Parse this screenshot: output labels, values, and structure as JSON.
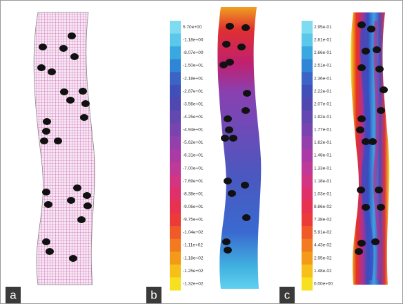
{
  "panels": [
    {
      "label": "a"
    },
    {
      "label": "b",
      "colorbar": [
        "5.70e+00",
        "-1.18e+00",
        "-8.07e+00",
        "-1.50e+01",
        "-2.18e+01",
        "-2.87e+01",
        "-3.56e+01",
        "-4.25e+01",
        "-4.94e+01",
        "-5.62e+01",
        "-6.31e+01",
        "-7.00e+01",
        "-7.69e+01",
        "-8.38e+01",
        "-9.06e+01",
        "-9.75e+01",
        "-1.04e+02",
        "-1.11e+02",
        "-1.18e+02",
        "-1.25e+02",
        "-1.32e+02"
      ]
    },
    {
      "label": "c",
      "colorbar": [
        "2.95e-01",
        "2.81e-01",
        "2.66e-01",
        "2.51e-01",
        "2.36e-01",
        "2.22e-01",
        "2.07e-01",
        "1.92e-01",
        "1.77e-01",
        "1.62e-01",
        "1.48e-01",
        "1.33e-01",
        "1.18e-01",
        "1.03e-01",
        "8.86e-02",
        "7.38e-02",
        "5.91e-02",
        "4.43e-02",
        "2.95e-02",
        "1.48e-02",
        "0.00e+00"
      ]
    }
  ]
}
